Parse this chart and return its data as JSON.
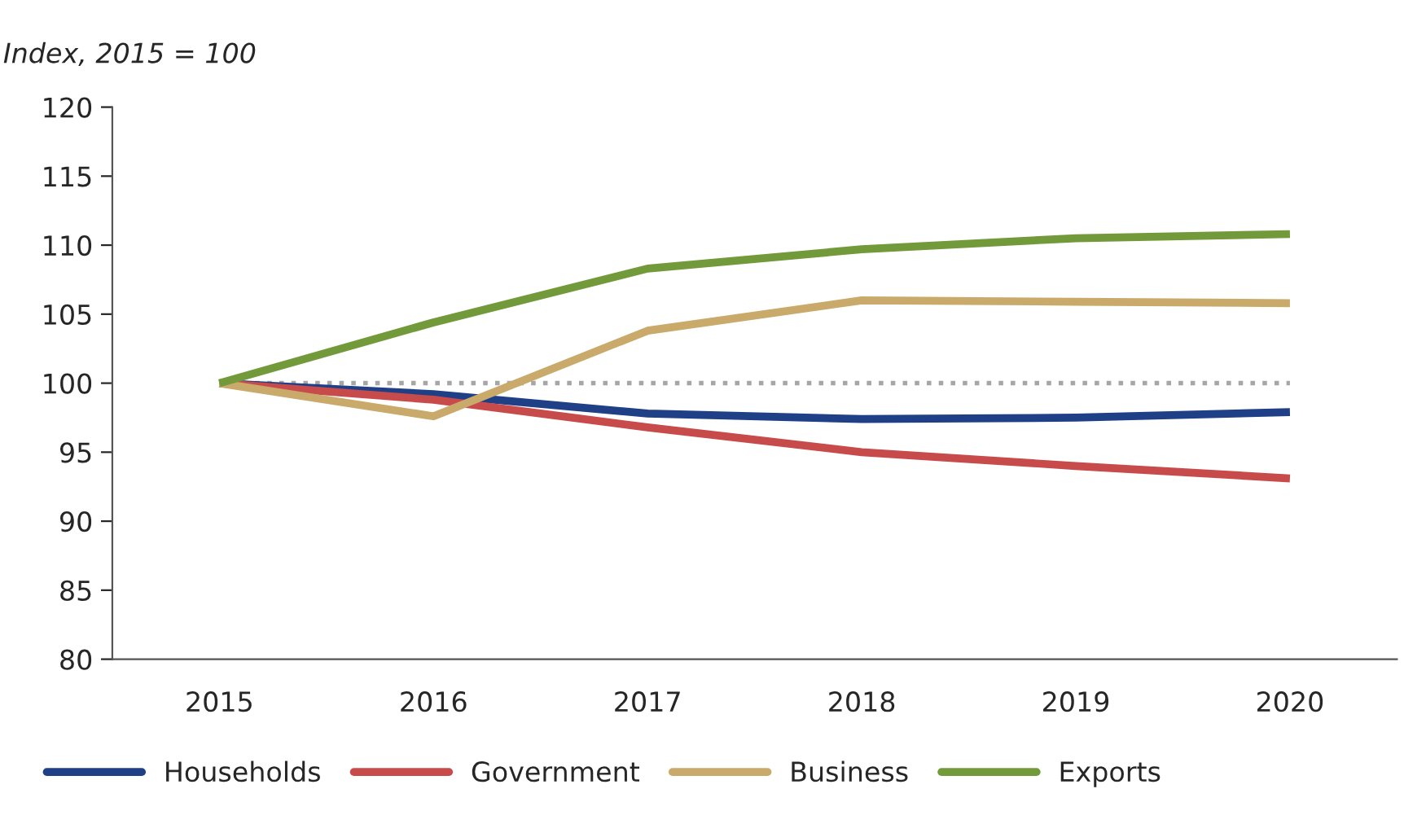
{
  "chart_data": {
    "type": "line",
    "ylabel": "Index, 2015 = 100",
    "categories": [
      "2015",
      "2016",
      "2017",
      "2018",
      "2019",
      "2020"
    ],
    "series": [
      {
        "name": "Households",
        "color": "#1f3f86",
        "values": [
          100,
          99.2,
          97.8,
          97.4,
          97.5,
          97.9
        ]
      },
      {
        "name": "Government",
        "color": "#c84b4b",
        "values": [
          100,
          98.8,
          96.8,
          95.0,
          94.0,
          93.1
        ]
      },
      {
        "name": "Business",
        "color": "#c9aa6a",
        "values": [
          100,
          97.6,
          103.8,
          106.0,
          105.9,
          105.8
        ]
      },
      {
        "name": "Exports",
        "color": "#739a3a",
        "values": [
          100,
          104.4,
          108.3,
          109.7,
          110.5,
          110.8
        ]
      }
    ],
    "ylim": [
      80,
      120
    ],
    "yticks": [
      80,
      85,
      90,
      95,
      100,
      105,
      110,
      115,
      120
    ],
    "ref_lines": [
      {
        "axis": "y",
        "value": 100,
        "color": "#a6a6a6",
        "line_style": "dotted"
      }
    ],
    "legend": "bottom",
    "marker": "none",
    "line_style": "solid"
  }
}
